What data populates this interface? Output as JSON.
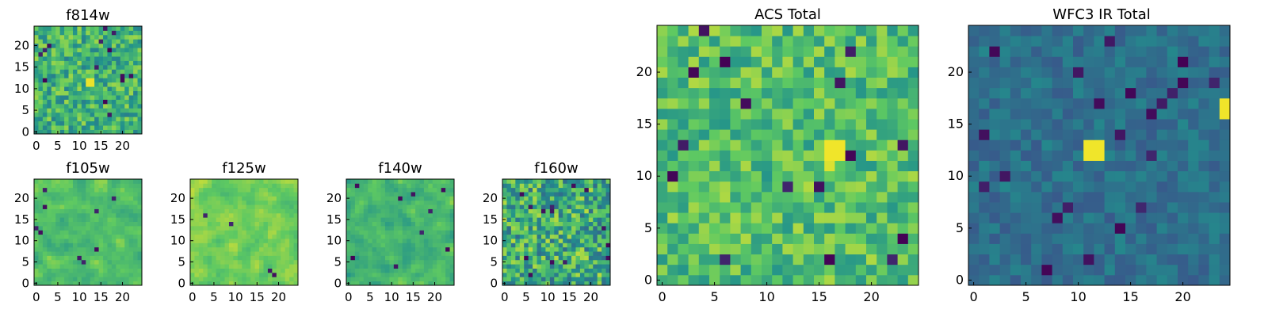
{
  "colormap": [
    "#440154",
    "#3b528b",
    "#21918c",
    "#5ec962",
    "#fde725"
  ],
  "chart_data": [
    {
      "type": "heatmap",
      "id": "f814w",
      "title": "f814w",
      "grid": [
        25,
        25
      ],
      "xlim": [
        -0.5,
        24.5
      ],
      "ylim": [
        -0.5,
        24.5
      ],
      "xticks": [
        0,
        5,
        10,
        15,
        20
      ],
      "yticks": [
        0,
        5,
        10,
        15,
        20
      ],
      "character": "uniform noise field, mean ~0.65 of colour scale, small bright blob near (13,12)"
    },
    {
      "type": "heatmap",
      "id": "f105w",
      "title": "f105w",
      "grid": [
        25,
        25
      ],
      "xlim": [
        -0.5,
        24.5
      ],
      "ylim": [
        -0.5,
        24.5
      ],
      "xticks": [
        0,
        5,
        10,
        15,
        20
      ],
      "yticks": [
        0,
        5,
        10,
        15,
        20
      ],
      "character": "smooth green-yellow noise with a few dark pixels"
    },
    {
      "type": "heatmap",
      "id": "f125w",
      "title": "f125w",
      "grid": [
        25,
        25
      ],
      "xlim": [
        -0.5,
        24.5
      ],
      "ylim": [
        -0.5,
        24.5
      ],
      "xticks": [
        0,
        5,
        10,
        15,
        20
      ],
      "yticks": [
        0,
        5,
        10,
        15,
        20
      ],
      "character": "smooth bright noise, mostly yellow-green"
    },
    {
      "type": "heatmap",
      "id": "f140w",
      "title": "f140w",
      "grid": [
        25,
        25
      ],
      "xlim": [
        -0.5,
        24.5
      ],
      "ylim": [
        -0.5,
        24.5
      ],
      "xticks": [
        0,
        5,
        10,
        15,
        20
      ],
      "yticks": [
        0,
        5,
        10,
        15,
        20
      ],
      "character": "smooth noise, slightly darker, dark streaks in upper right"
    },
    {
      "type": "heatmap",
      "id": "f160w",
      "title": "f160w",
      "grid": [
        25,
        25
      ],
      "xlim": [
        -0.5,
        24.5
      ],
      "ylim": [
        -0.5,
        24.5
      ],
      "xticks": [
        0,
        5,
        10,
        15,
        20
      ],
      "yticks": [
        0,
        5,
        10,
        15,
        20
      ],
      "character": "noisy green with scattered dark pixels"
    },
    {
      "type": "heatmap",
      "id": "acs-total",
      "title": "ACS Total",
      "grid": [
        25,
        25
      ],
      "xlim": [
        -0.5,
        24.5
      ],
      "ylim": [
        -0.5,
        24.5
      ],
      "xticks": [
        0,
        5,
        10,
        15,
        20
      ],
      "yticks": [
        0,
        5,
        10,
        15,
        20
      ],
      "character": "pixel noise mean ~0.72, bright yellow blob at (16-17, 12-13), few dark pixels"
    },
    {
      "type": "heatmap",
      "id": "wfc3-ir-total",
      "title": "WFC3 IR Total",
      "grid": [
        25,
        25
      ],
      "xlim": [
        -0.5,
        24.5
      ],
      "ylim": [
        -0.5,
        24.5
      ],
      "xticks": [
        0,
        5,
        10,
        15,
        20
      ],
      "yticks": [
        0,
        5,
        10,
        15,
        20
      ],
      "character": "dark teal-blue field, yellow source at (11-12, 12-13), yellow source at (24, 16-17)"
    }
  ]
}
